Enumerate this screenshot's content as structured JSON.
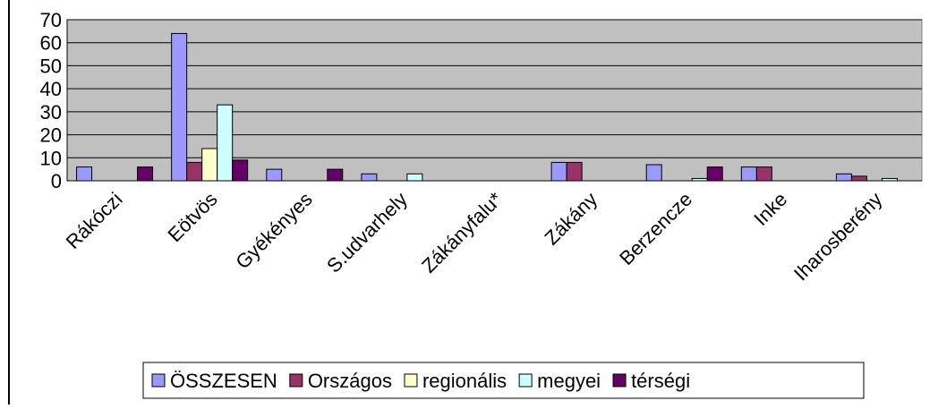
{
  "chart_data": {
    "type": "bar",
    "categories": [
      "Rákóczi",
      "Eötvös",
      "Gyékényes",
      "S.udvarhely",
      "Zákányfalu*",
      "Zákány",
      "Berzencze",
      "Inke",
      "Iharosberény"
    ],
    "series": [
      {
        "name": "ÖSSZESEN",
        "color": "#9999ff",
        "values": [
          6,
          64,
          5,
          3,
          0,
          8,
          7,
          6,
          3
        ]
      },
      {
        "name": "Országos",
        "color": "#993366",
        "values": [
          0,
          8,
          0,
          0,
          0,
          8,
          0,
          6,
          2
        ]
      },
      {
        "name": "regionális",
        "color": "#ffffcc",
        "values": [
          0,
          14,
          0,
          0,
          0,
          0,
          0,
          0,
          0
        ]
      },
      {
        "name": "megyei",
        "color": "#ccffff",
        "values": [
          0,
          33,
          0,
          3,
          0,
          0,
          1,
          0,
          1
        ]
      },
      {
        "name": "térségi",
        "color": "#660066",
        "values": [
          6,
          9,
          5,
          0,
          0,
          0,
          6,
          0,
          0
        ]
      }
    ],
    "ylim": [
      0,
      70
    ],
    "yticks": [
      0,
      10,
      20,
      30,
      40,
      50,
      60,
      70
    ],
    "grid": true,
    "legend": "bottom"
  }
}
